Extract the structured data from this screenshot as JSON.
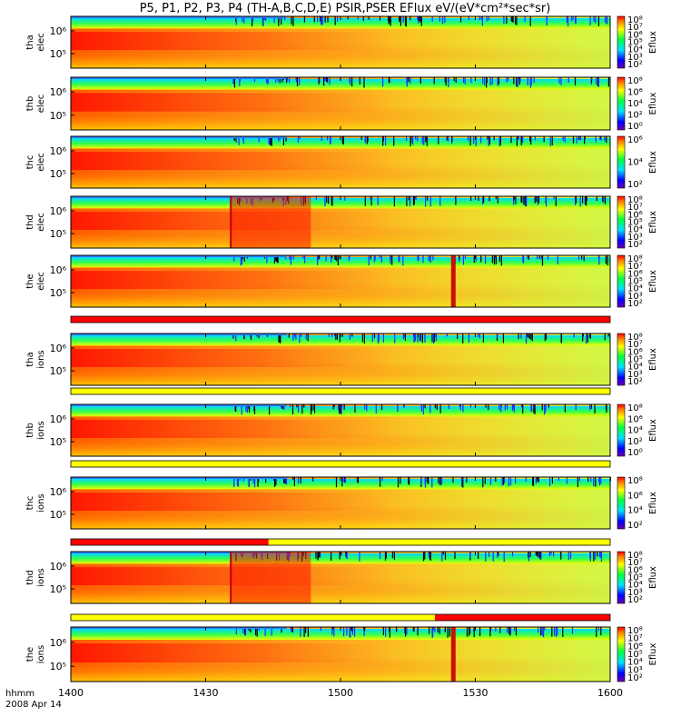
{
  "chart_data": {
    "type": "heatmap",
    "title": "P5, P1, P2, P3, P4 (TH-A,B,C,D,E) PSIR,PSER EFlux eV/(eV*cm²*sec*sr)",
    "x_ticks": [
      "1400",
      "1430",
      "1500",
      "1530",
      "1600"
    ],
    "x_axis_label": "hhmm",
    "date_label": "2008 Apr 14",
    "colorbar_label": "Eflux",
    "panels": [
      {
        "id": "tha_elec",
        "probe": "tha",
        "species": "elec",
        "y_ticks": [
          "10⁶",
          "10⁵"
        ],
        "cb_ticks": [
          "10⁸",
          "10⁷",
          "10⁶",
          "10⁵",
          "10⁴",
          "10³",
          "10²"
        ]
      },
      {
        "id": "thb_elec",
        "probe": "thb",
        "species": "elec",
        "y_ticks": [
          "10⁶",
          "10⁵"
        ],
        "cb_ticks": [
          "10⁸",
          "10⁶",
          "10⁴",
          "10²",
          "10⁰"
        ]
      },
      {
        "id": "thc_elec",
        "probe": "thc",
        "species": "elec",
        "y_ticks": [
          "10⁶",
          "10⁵"
        ],
        "cb_ticks": [
          "10⁶",
          "10⁴",
          "10²"
        ]
      },
      {
        "id": "thd_elec",
        "probe": "thd",
        "species": "elec",
        "y_ticks": [
          "10⁶",
          "10⁵"
        ],
        "cb_ticks": [
          "10⁸",
          "10⁷",
          "10⁶",
          "10⁵",
          "10⁴",
          "10³",
          "10²"
        ]
      },
      {
        "id": "the_elec",
        "probe": "the",
        "species": "elec",
        "y_ticks": [
          "10⁶",
          "10⁵"
        ],
        "cb_ticks": [
          "10⁸",
          "10⁷",
          "10⁶",
          "10⁵",
          "10⁴",
          "10³",
          "10²"
        ]
      },
      {
        "id": "tha_ions",
        "probe": "tha",
        "species": "ions",
        "y_ticks": [
          "10⁶",
          "10⁵"
        ],
        "cb_ticks": [
          "10⁸",
          "10⁷",
          "10⁶",
          "10⁵",
          "10⁴",
          "10³",
          "10²"
        ]
      },
      {
        "id": "thb_ions",
        "probe": "thb",
        "species": "ions",
        "y_ticks": [
          "10⁶",
          "10⁵"
        ],
        "cb_ticks": [
          "10⁸",
          "10⁶",
          "10⁴",
          "10²",
          "10⁰"
        ]
      },
      {
        "id": "thc_ions",
        "probe": "thc",
        "species": "ions",
        "y_ticks": [
          "10⁶",
          "10⁵"
        ],
        "cb_ticks": [
          "10⁸",
          "10⁶",
          "10⁴",
          "10²"
        ]
      },
      {
        "id": "thd_ions",
        "probe": "thd",
        "species": "ions",
        "y_ticks": [
          "10⁶",
          "10⁵"
        ],
        "cb_ticks": [
          "10⁸",
          "10⁷",
          "10⁶",
          "10⁵",
          "10⁴",
          "10³",
          "10²"
        ]
      },
      {
        "id": "the_ions",
        "probe": "the",
        "species": "ions",
        "y_ticks": [
          "10⁶",
          "10⁵"
        ],
        "cb_ticks": [
          "10⁸",
          "10⁷",
          "10⁶",
          "10⁵",
          "10⁴",
          "10³",
          "10²"
        ]
      }
    ],
    "mode_bars": [
      {
        "segments": [
          {
            "from": "1400",
            "to": "1600",
            "color": "#ff0000"
          }
        ]
      },
      {
        "segments": [
          {
            "from": "1400",
            "to": "1600",
            "color": "#ffff00"
          }
        ]
      },
      {
        "segments": [
          {
            "from": "1400",
            "to": "1600",
            "color": "#ffff00"
          }
        ]
      },
      {
        "segments": [
          {
            "from": "1400",
            "to": "1444",
            "color": "#ff0000"
          },
          {
            "from": "1444",
            "to": "1600",
            "color": "#ffff00"
          }
        ]
      },
      {
        "segments": [
          {
            "from": "1400",
            "to": "1521",
            "color": "#ffff00"
          },
          {
            "from": "1521",
            "to": "1600",
            "color": "#ff0000"
          }
        ]
      }
    ]
  }
}
